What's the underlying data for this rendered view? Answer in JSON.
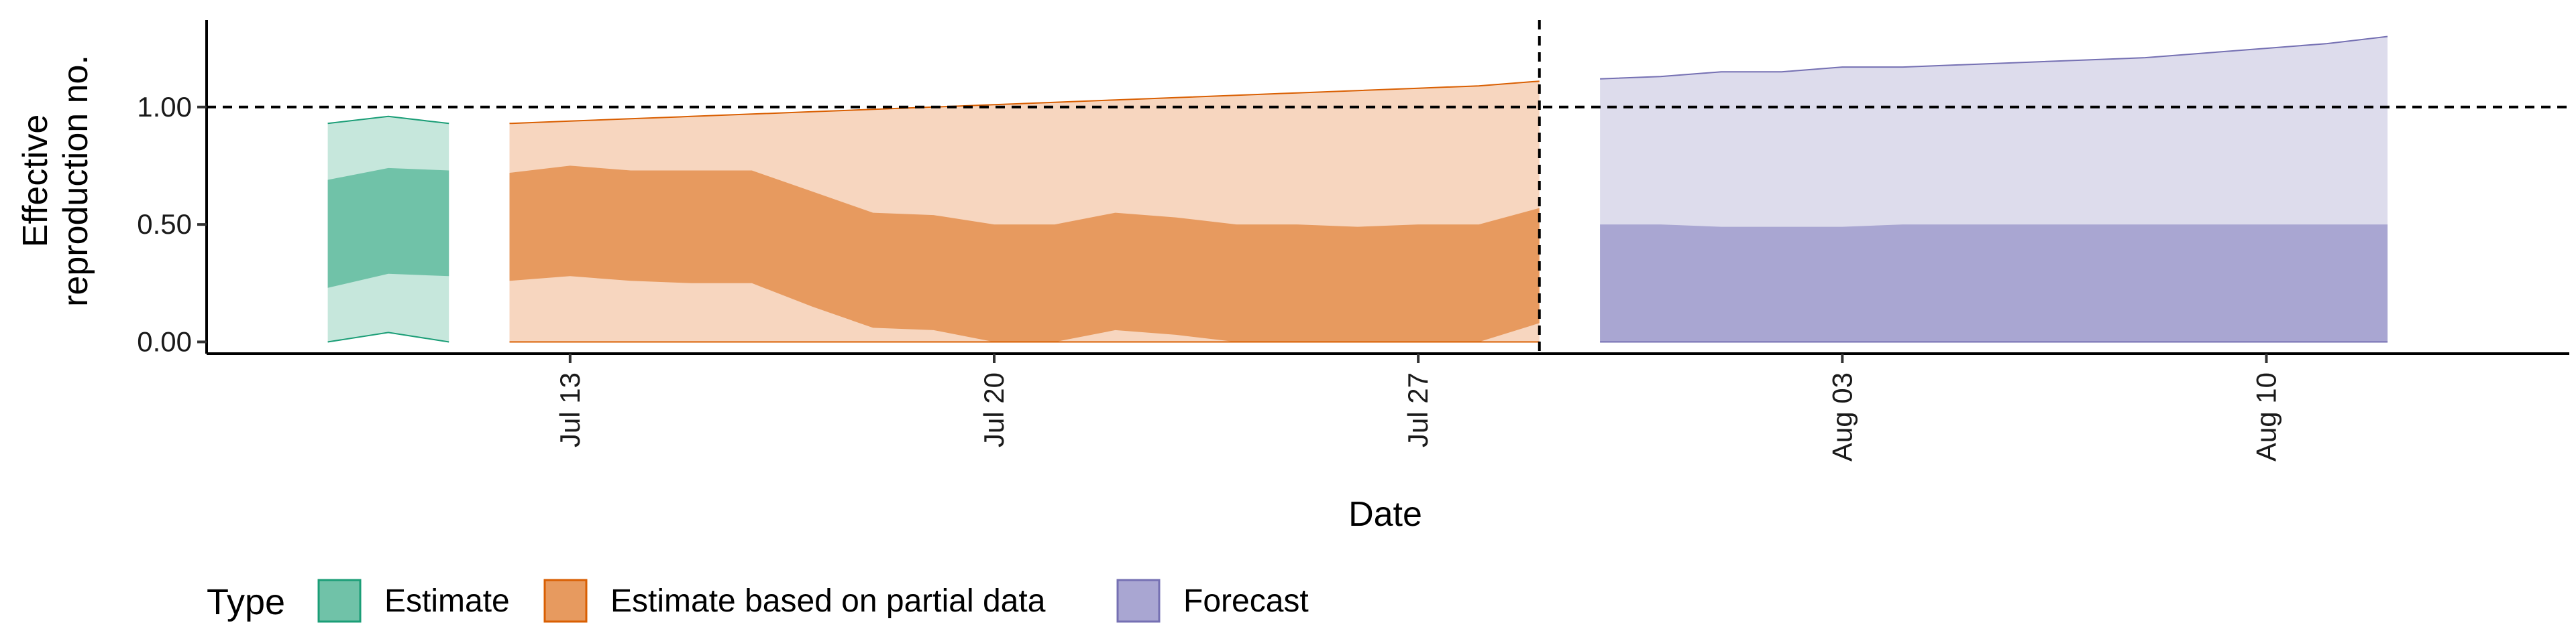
{
  "chart_data": {
    "type": "area",
    "xlabel": "Date",
    "ylabel": "Effective reproduction no.",
    "ylabel_lines": [
      "Effective",
      "reproduction no."
    ],
    "x_range": [
      "2020-07-07",
      "2020-08-15"
    ],
    "ylim": [
      -0.05,
      1.37
    ],
    "y_ticks": [
      0.0,
      0.5,
      1.0
    ],
    "y_tick_labels": [
      "0.00",
      "0.50",
      "1.00"
    ],
    "x_ticks": [
      "2020-07-13",
      "2020-07-20",
      "2020-07-27",
      "2020-08-03",
      "2020-08-10"
    ],
    "x_tick_labels": [
      "Jul 13",
      "Jul 20",
      "Jul 27",
      "Aug 03",
      "Aug 10"
    ],
    "reference_line_y": 1.0,
    "vertical_line_date": "2020-07-29",
    "grid": false,
    "legend": {
      "title": "Type",
      "position": "bottom-left",
      "entries": [
        "Estimate",
        "Estimate based on partial data",
        "Forecast"
      ]
    },
    "colors": {
      "Estimate": {
        "inner": "#70c2a8",
        "outer": "#c6e7dc",
        "line": "#1b9e77"
      },
      "Estimate based on partial data": {
        "inner": "#e79a5f",
        "outer": "#f7d6bf",
        "line": "#d95f02"
      },
      "Forecast": {
        "inner": "#a9a6d2",
        "outer": "#dddcec",
        "line": "#7570b3"
      }
    },
    "series": [
      {
        "name": "Estimate",
        "x": [
          "2020-07-09",
          "2020-07-10",
          "2020-07-11"
        ],
        "outer_upper": [
          0.93,
          0.96,
          0.93
        ],
        "outer_lower": [
          0.0,
          0.04,
          0.0
        ],
        "inner_upper": [
          0.69,
          0.74,
          0.73
        ],
        "inner_lower": [
          0.23,
          0.29,
          0.28
        ]
      },
      {
        "name": "Estimate based on partial data",
        "x": [
          "2020-07-12",
          "2020-07-13",
          "2020-07-14",
          "2020-07-15",
          "2020-07-16",
          "2020-07-17",
          "2020-07-18",
          "2020-07-19",
          "2020-07-20",
          "2020-07-21",
          "2020-07-22",
          "2020-07-23",
          "2020-07-24",
          "2020-07-25",
          "2020-07-26",
          "2020-07-27",
          "2020-07-28",
          "2020-07-29"
        ],
        "outer_upper": [
          0.93,
          0.94,
          0.95,
          0.96,
          0.97,
          0.98,
          0.99,
          1.0,
          1.01,
          1.02,
          1.03,
          1.04,
          1.05,
          1.06,
          1.07,
          1.08,
          1.09,
          1.11
        ],
        "outer_lower": [
          0.0,
          0.0,
          0.0,
          0.0,
          0.0,
          0.0,
          0.0,
          0.0,
          0.0,
          0.0,
          0.0,
          0.0,
          0.0,
          0.0,
          0.0,
          0.0,
          0.0,
          0.0
        ],
        "inner_upper": [
          0.72,
          0.75,
          0.73,
          0.73,
          0.73,
          0.64,
          0.55,
          0.54,
          0.5,
          0.5,
          0.55,
          0.53,
          0.5,
          0.5,
          0.49,
          0.5,
          0.5,
          0.57
        ],
        "inner_lower": [
          0.26,
          0.28,
          0.26,
          0.25,
          0.25,
          0.15,
          0.06,
          0.05,
          0.0,
          0.0,
          0.05,
          0.03,
          0.0,
          0.0,
          0.0,
          0.0,
          0.0,
          0.08
        ]
      },
      {
        "name": "Forecast",
        "x": [
          "2020-07-30",
          "2020-07-31",
          "2020-08-01",
          "2020-08-02",
          "2020-08-03",
          "2020-08-04",
          "2020-08-05",
          "2020-08-06",
          "2020-08-07",
          "2020-08-08",
          "2020-08-09",
          "2020-08-10",
          "2020-08-11",
          "2020-08-12"
        ],
        "outer_upper": [
          1.12,
          1.13,
          1.15,
          1.15,
          1.17,
          1.17,
          1.18,
          1.19,
          1.2,
          1.21,
          1.23,
          1.25,
          1.27,
          1.3
        ],
        "outer_lower": [
          0.0,
          0.0,
          0.0,
          0.0,
          0.0,
          0.0,
          0.0,
          0.0,
          0.0,
          0.0,
          0.0,
          0.0,
          0.0,
          0.0
        ],
        "inner_upper": [
          0.5,
          0.5,
          0.49,
          0.49,
          0.49,
          0.5,
          0.5,
          0.5,
          0.5,
          0.5,
          0.5,
          0.5,
          0.5,
          0.5
        ],
        "inner_lower": [
          0.0,
          0.0,
          0.0,
          0.0,
          0.0,
          0.0,
          0.0,
          0.0,
          0.0,
          0.0,
          0.0,
          0.0,
          0.0,
          0.0
        ]
      }
    ]
  }
}
